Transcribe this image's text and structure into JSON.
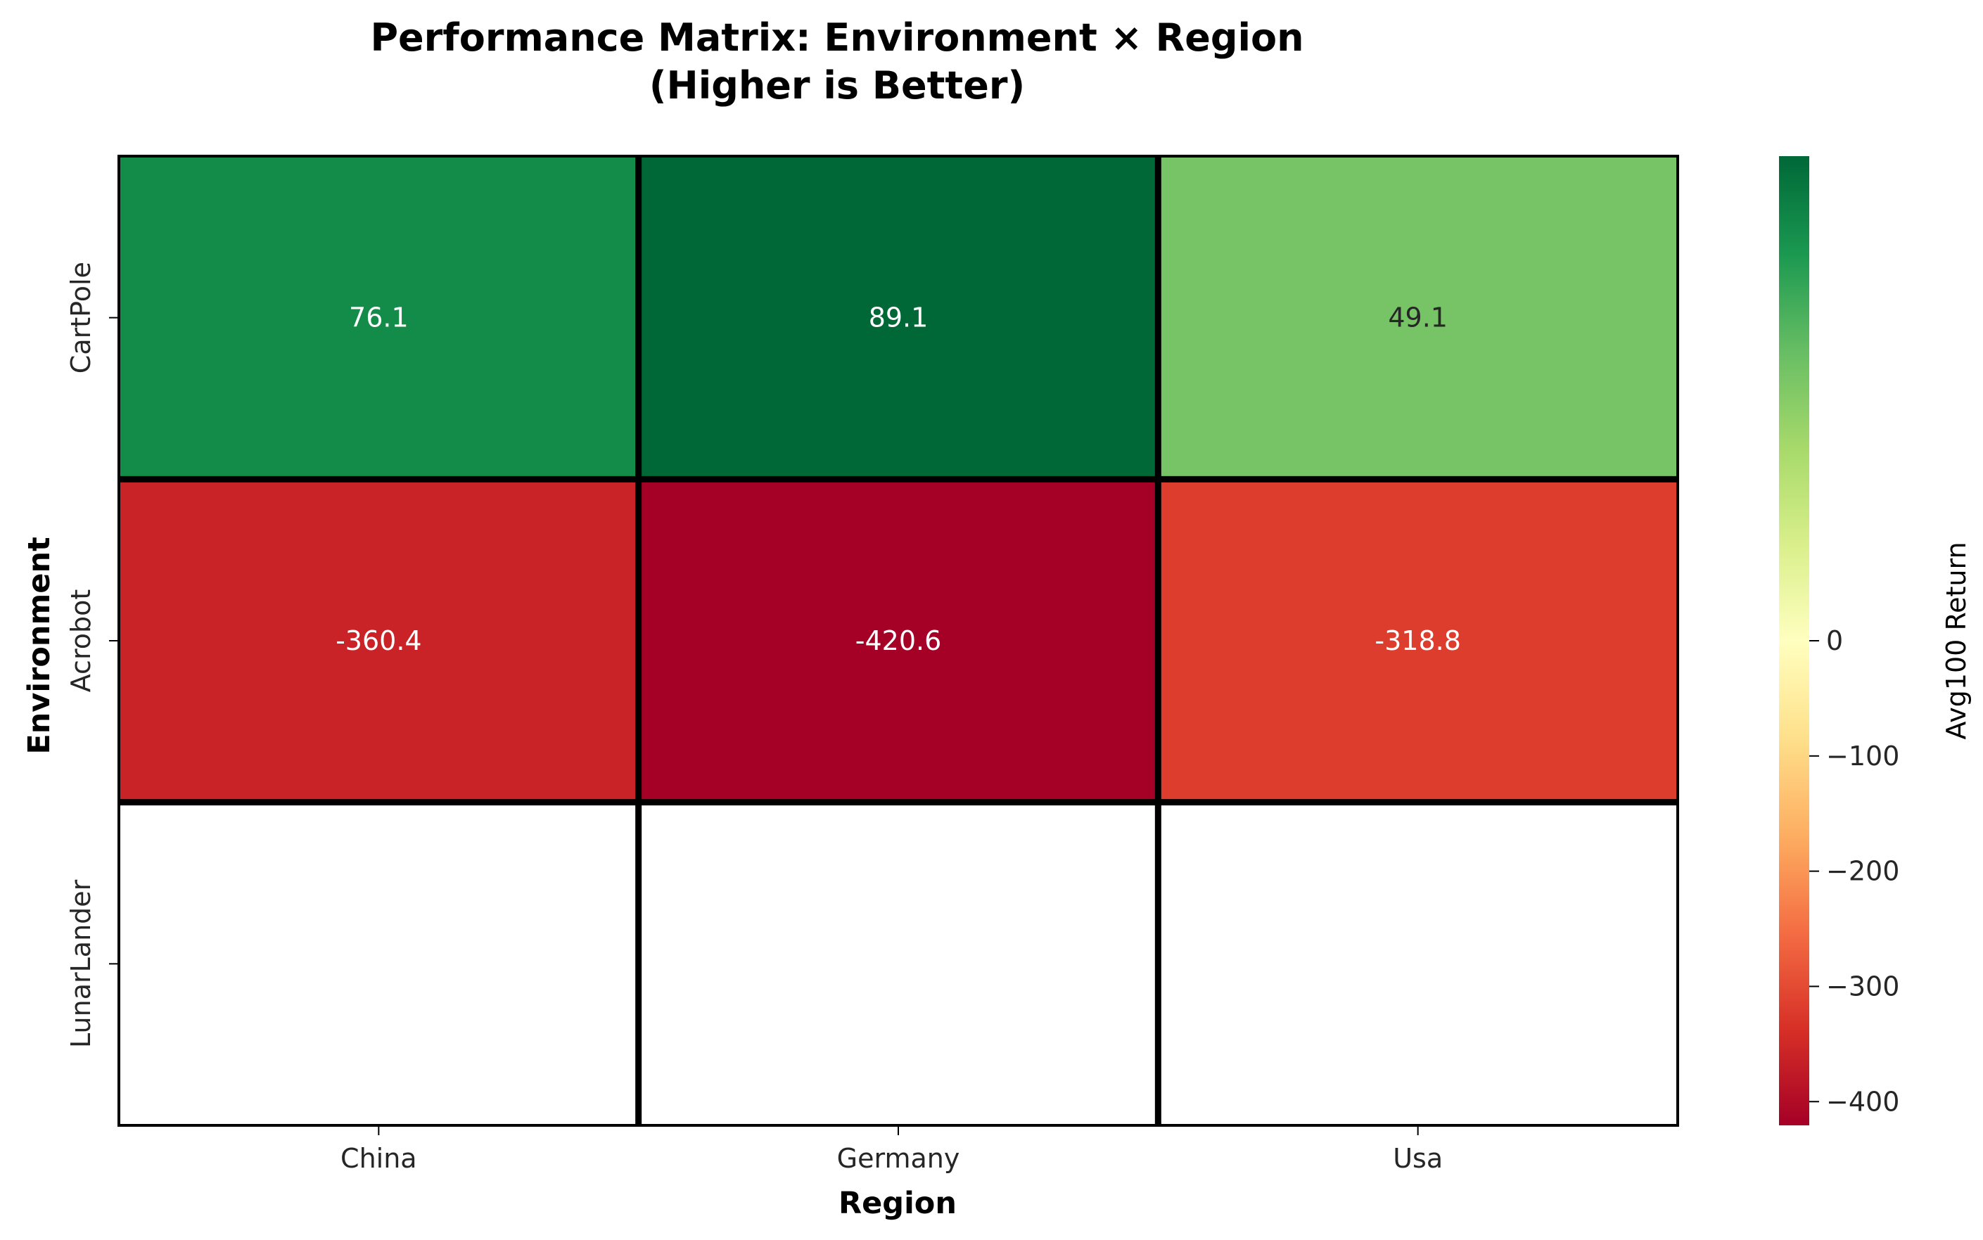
{
  "chart_data": {
    "type": "heatmap",
    "title_line1": "Performance Matrix: Environment × Region",
    "title_line2": "(Higher is Better)",
    "xlabel": "Region",
    "ylabel": "Environment",
    "x_categories": [
      "China",
      "Germany",
      "Usa"
    ],
    "y_categories": [
      "CartPole",
      "Acrobot",
      "LunarLander"
    ],
    "values": [
      [
        76.1,
        89.1,
        49.1
      ],
      [
        -360.4,
        -420.6,
        -318.8
      ],
      [
        null,
        null,
        null
      ]
    ],
    "cell_labels": [
      [
        "76.1",
        "89.1",
        "49.1"
      ],
      [
        "-360.4",
        "-420.6",
        "-318.8"
      ],
      [
        "",
        "",
        ""
      ]
    ],
    "colormap": "RdYlGn",
    "colorbar": {
      "label": "Avg100 Return",
      "vmin": -420.6,
      "vmax": 89.1,
      "ticks": [
        0,
        -100,
        -200,
        -300,
        -400
      ],
      "tick_labels": [
        "0",
        "−100",
        "−200",
        "−300",
        "−400"
      ]
    },
    "grid_line_color": "#000000"
  }
}
